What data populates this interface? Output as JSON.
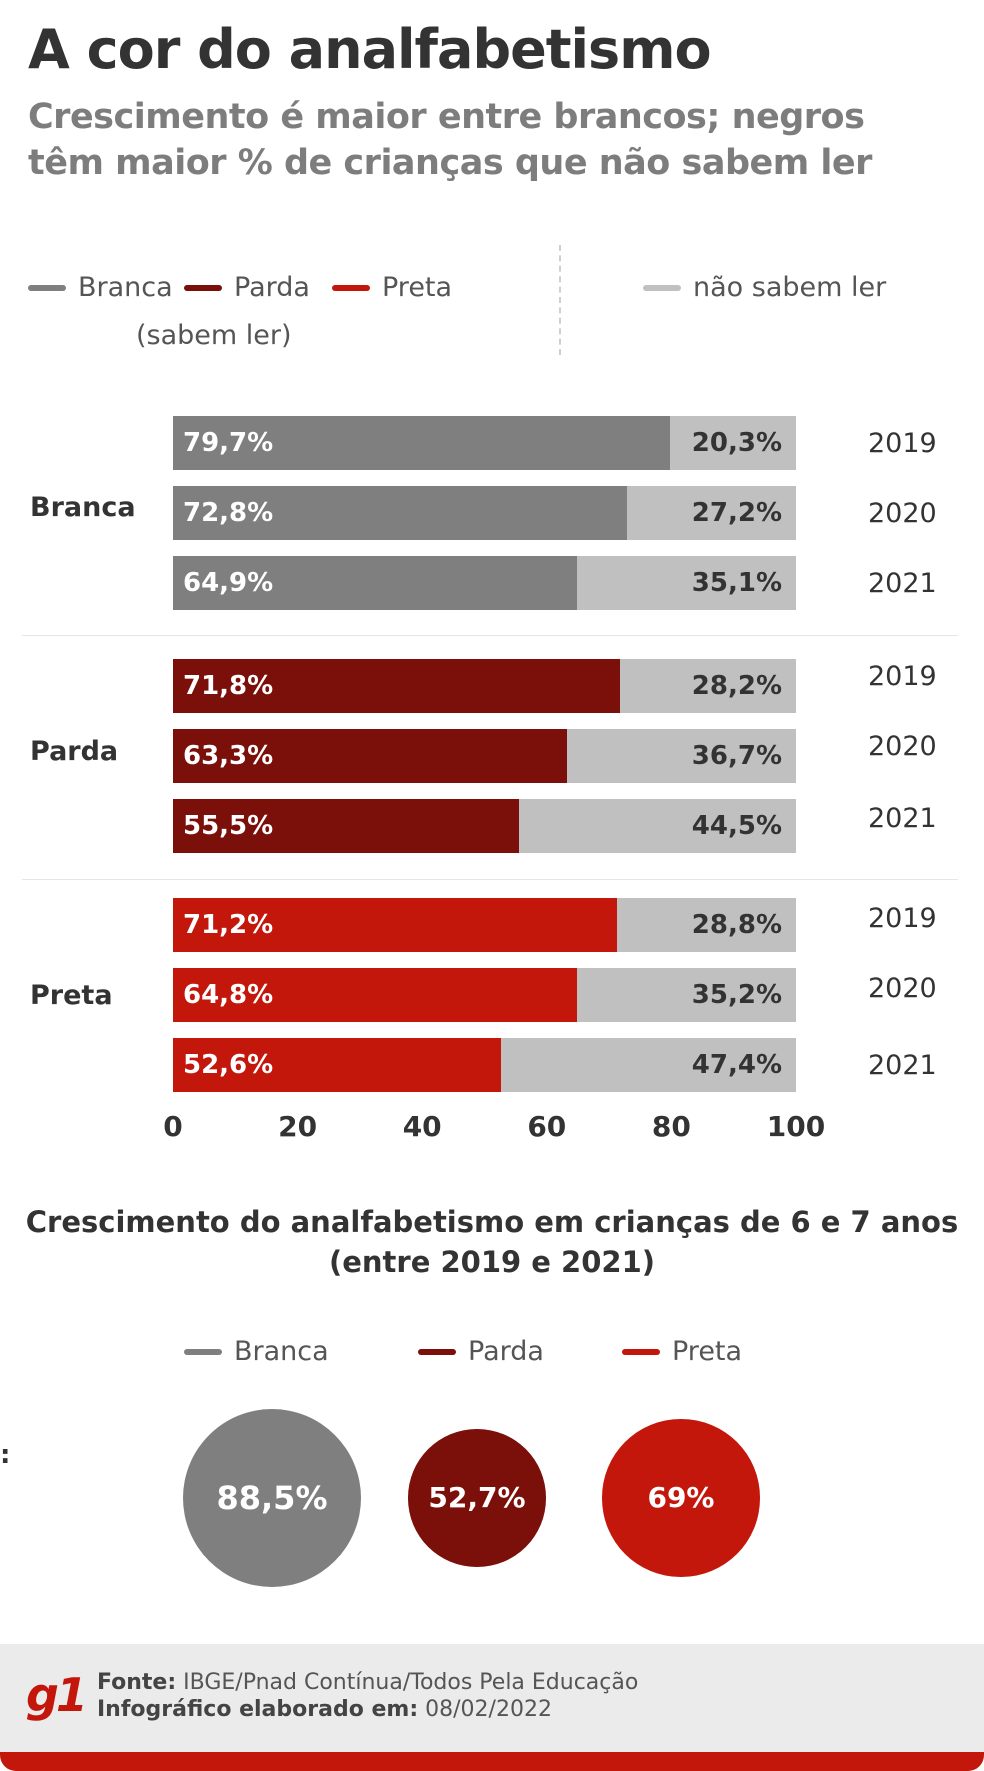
{
  "title": "A cor do analfabetismo",
  "subtitle_line1": "Crescimento é maior entre brancos; negros",
  "subtitle_line2": "têm maior % de crianças que não sabem ler",
  "legend": {
    "branca": "Branca",
    "parda": "Parda",
    "preta": "Preta",
    "sabem_ler": "(sabem ler)",
    "nao_sabem_ler": "não sabem ler"
  },
  "colors": {
    "branca": "#7f7f7f",
    "parda": "#7b0f0a",
    "preta": "#c4170c",
    "nao_sabem": "#c0c0c0"
  },
  "chart_data": {
    "type": "bar",
    "orientation": "horizontal",
    "stacked": true,
    "xlim": [
      0,
      100
    ],
    "x_ticks": [
      0,
      20,
      40,
      60,
      80,
      100
    ],
    "groups": [
      {
        "name": "Branca",
        "rows": [
          {
            "year": "2019",
            "sabem_ler": 79.7,
            "nao_sabem_ler": 20.3,
            "label_sabem": "79,7%",
            "label_nao": "20,3%"
          },
          {
            "year": "2020",
            "sabem_ler": 72.8,
            "nao_sabem_ler": 27.2,
            "label_sabem": "72,8%",
            "label_nao": "27,2%"
          },
          {
            "year": "2021",
            "sabem_ler": 64.9,
            "nao_sabem_ler": 35.1,
            "label_sabem": "64,9%",
            "label_nao": "35,1%"
          }
        ]
      },
      {
        "name": "Parda",
        "rows": [
          {
            "year": "2019",
            "sabem_ler": 71.8,
            "nao_sabem_ler": 28.2,
            "label_sabem": "71,8%",
            "label_nao": "28,2%"
          },
          {
            "year": "2020",
            "sabem_ler": 63.3,
            "nao_sabem_ler": 36.7,
            "label_sabem": "63,3%",
            "label_nao": "36,7%"
          },
          {
            "year": "2021",
            "sabem_ler": 55.5,
            "nao_sabem_ler": 44.5,
            "label_sabem": "55,5%",
            "label_nao": "44,5%"
          }
        ]
      },
      {
        "name": "Preta",
        "rows": [
          {
            "year": "2019",
            "sabem_ler": 71.2,
            "nao_sabem_ler": 28.8,
            "label_sabem": "71,2%",
            "label_nao": "28,8%"
          },
          {
            "year": "2020",
            "sabem_ler": 64.8,
            "nao_sabem_ler": 35.2,
            "label_sabem": "64,8%",
            "label_nao": "35,2%"
          },
          {
            "year": "2021",
            "sabem_ler": 52.6,
            "nao_sabem_ler": 47.4,
            "label_sabem": "52,6%",
            "label_nao": "47,4%"
          }
        ]
      }
    ],
    "growth": {
      "title_line1": "Crescimento do analfabetismo em crianças de 6 e 7 anos",
      "title_line2": "(entre 2019 e 2021)",
      "items": [
        {
          "name": "Branca",
          "value": 88.5,
          "label": "88,5%"
        },
        {
          "name": "Parda",
          "value": 52.7,
          "label": "52,7%"
        },
        {
          "name": "Preta",
          "value": 69,
          "label": "69%"
        }
      ]
    }
  },
  "stray_mark": ":",
  "footer": {
    "logo": "g1",
    "fonte_label": "Fonte:",
    "fonte_value": "IBGE/Pnad Contínua/Todos Pela Educação",
    "info_label": "Infográfico elaborado em:",
    "info_value": "08/02/2022"
  }
}
